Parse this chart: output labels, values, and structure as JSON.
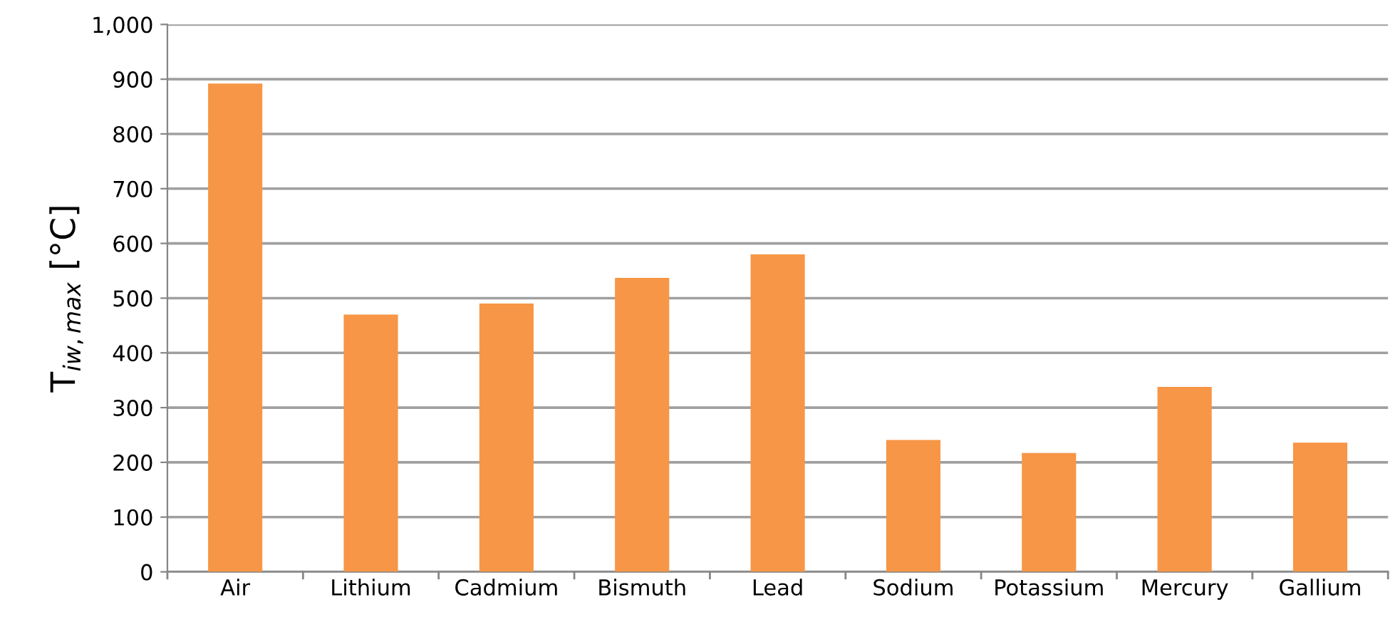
{
  "chart_data": {
    "type": "bar",
    "ylabel": "T$_{iw,max}$ [°C]",
    "categories": [
      "Air",
      "Lithium",
      "Cadmium",
      "Bismuth",
      "Lead",
      "Sodium",
      "Potassium",
      "Mercury",
      "Gallium"
    ],
    "values": [
      892,
      470,
      490,
      537,
      580,
      241,
      217,
      338,
      236
    ],
    "color": "#f79646",
    "ylim": [
      0,
      1000
    ],
    "yticks": [
      {
        "value": 0,
        "label": "0"
      },
      {
        "value": 100,
        "label": "100"
      },
      {
        "value": 200,
        "label": "200"
      },
      {
        "value": 300,
        "label": "300"
      },
      {
        "value": 400,
        "label": "400"
      },
      {
        "value": 500,
        "label": "500"
      },
      {
        "value": 600,
        "label": "600"
      },
      {
        "value": 700,
        "label": "700"
      },
      {
        "value": 800,
        "label": "800"
      },
      {
        "value": 900,
        "label": "900"
      },
      {
        "value": 1000,
        "label": "1,000"
      }
    ],
    "grid": "y",
    "legend": false
  }
}
